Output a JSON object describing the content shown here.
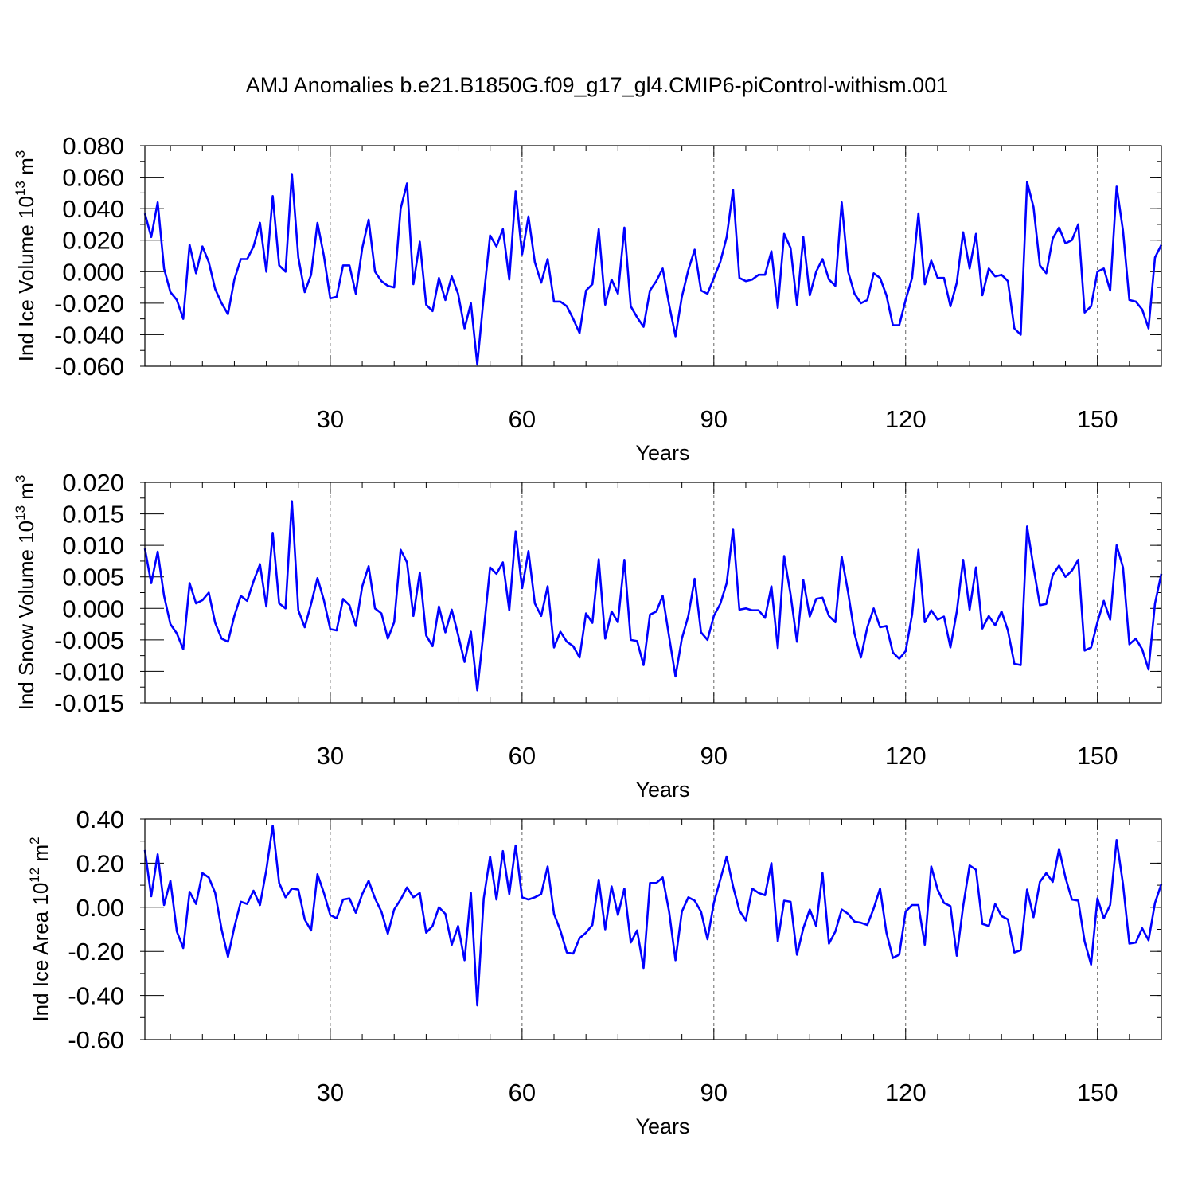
{
  "title": "AMJ Anomalies b.e21.B1850G.f09_g17_gl4.CMIP6-piControl-withism.001",
  "chart_data": [
    {
      "type": "line",
      "ylabel": "Ind Ice Volume 10",
      "ylabel_exp": "13",
      "ylabel_unit": " m",
      "ylabel_unit_exp": "3",
      "xlabel": "Years",
      "xlim": [
        1,
        160
      ],
      "ylim": [
        -0.06,
        0.08
      ],
      "yticks": [
        -0.06,
        -0.04,
        -0.02,
        0.0,
        0.02,
        0.04,
        0.06,
        0.08
      ],
      "ytick_labels": [
        "-0.060",
        "-0.040",
        "-0.020",
        "0.000",
        "0.020",
        "0.040",
        "0.060",
        "0.080"
      ],
      "xticks": [
        30,
        60,
        90,
        120,
        150
      ],
      "xtick_labels": [
        "30",
        "60",
        "90",
        "120",
        "150"
      ],
      "grid": "dashed vertical lines at major x ticks",
      "series": [
        {
          "color": "#0000ff",
          "x_start": 1,
          "values": [
            0.037,
            0.022,
            0.044,
            0.002,
            -0.013,
            -0.018,
            -0.03,
            0.017,
            -0.001,
            0.016,
            0.006,
            -0.011,
            -0.02,
            -0.027,
            -0.005,
            0.008,
            0.008,
            0.016,
            0.031,
            0.0,
            0.048,
            0.004,
            0.0,
            0.062,
            0.009,
            -0.013,
            -0.002,
            0.031,
            0.01,
            -0.017,
            -0.016,
            0.004,
            0.004,
            -0.014,
            0.015,
            0.033,
            0.0,
            -0.006,
            -0.009,
            -0.01,
            0.04,
            0.056,
            -0.008,
            0.019,
            -0.021,
            -0.025,
            -0.004,
            -0.018,
            -0.003,
            -0.014,
            -0.036,
            -0.02,
            -0.059,
            -0.016,
            0.023,
            0.016,
            0.027,
            -0.005,
            0.051,
            0.011,
            0.035,
            0.006,
            -0.007,
            0.008,
            -0.019,
            -0.019,
            -0.022,
            -0.03,
            -0.039,
            -0.012,
            -0.008,
            0.027,
            -0.021,
            -0.005,
            -0.014,
            0.028,
            -0.022,
            -0.029,
            -0.035,
            -0.012,
            -0.006,
            0.002,
            -0.021,
            -0.041,
            -0.016,
            0.001,
            0.014,
            -0.012,
            -0.014,
            -0.004,
            0.006,
            0.022,
            0.052,
            -0.004,
            -0.006,
            -0.005,
            -0.002,
            -0.002,
            0.013,
            -0.023,
            0.024,
            0.015,
            -0.021,
            0.022,
            -0.015,
            0.0,
            0.008,
            -0.005,
            -0.009,
            0.044,
            0.0,
            -0.014,
            -0.02,
            -0.018,
            -0.001,
            -0.004,
            -0.015,
            -0.034,
            -0.034,
            -0.018,
            -0.004,
            0.037,
            -0.008,
            0.007,
            -0.004,
            -0.004,
            -0.022,
            -0.007,
            0.025,
            0.002,
            0.024,
            -0.015,
            0.002,
            -0.003,
            -0.002,
            -0.006,
            -0.036,
            -0.04,
            0.057,
            0.041,
            0.004,
            -0.001,
            0.021,
            0.028,
            0.018,
            0.02,
            0.03,
            -0.026,
            -0.022,
            0.0,
            0.002,
            -0.012,
            0.054,
            0.026,
            -0.018,
            -0.019,
            -0.024,
            -0.036,
            0.009,
            0.017
          ]
        }
      ]
    },
    {
      "type": "line",
      "ylabel": "Ind Snow Volume 10",
      "ylabel_exp": "13",
      "ylabel_unit": " m",
      "ylabel_unit_exp": "3",
      "xlabel": "Years",
      "xlim": [
        1,
        160
      ],
      "ylim": [
        -0.015,
        0.02
      ],
      "yticks": [
        -0.015,
        -0.01,
        -0.005,
        0.0,
        0.005,
        0.01,
        0.015,
        0.02
      ],
      "ytick_labels": [
        "-0.015",
        "-0.010",
        "-0.005",
        "0.000",
        "0.005",
        "0.010",
        "0.015",
        "0.020"
      ],
      "xticks": [
        30,
        60,
        90,
        120,
        150
      ],
      "xtick_labels": [
        "30",
        "60",
        "90",
        "120",
        "150"
      ],
      "grid": "dashed vertical lines at major x ticks",
      "series": [
        {
          "color": "#0000ff",
          "x_start": 1,
          "values": [
            0.0095,
            0.004,
            0.009,
            0.002,
            -0.0025,
            -0.004,
            -0.0065,
            0.004,
            0.0008,
            0.0013,
            0.0025,
            -0.0023,
            -0.0048,
            -0.0053,
            -0.0012,
            0.002,
            0.0012,
            0.0043,
            0.007,
            0.0003,
            0.012,
            0.0008,
            0.0,
            0.017,
            -0.0003,
            -0.003,
            0.0007,
            0.0048,
            0.0013,
            -0.0033,
            -0.0035,
            0.0015,
            0.0005,
            -0.0028,
            0.0035,
            0.0067,
            0.0,
            -0.0008,
            -0.0048,
            -0.0022,
            0.0093,
            0.0073,
            -0.0012,
            0.0057,
            -0.0043,
            -0.006,
            0.0003,
            -0.0038,
            -0.0002,
            -0.0042,
            -0.0085,
            -0.0037,
            -0.013,
            -0.0035,
            0.0065,
            0.0055,
            0.0073,
            -0.0003,
            0.0122,
            0.0032,
            0.0091,
            0.0008,
            -0.0012,
            0.0035,
            -0.0062,
            -0.0037,
            -0.0053,
            -0.006,
            -0.0078,
            -0.0008,
            -0.0023,
            0.0078,
            -0.0048,
            -0.0005,
            -0.0022,
            0.0077,
            -0.005,
            -0.0052,
            -0.009,
            -0.001,
            -0.0005,
            0.002,
            -0.0045,
            -0.0108,
            -0.0048,
            -0.0012,
            0.0047,
            -0.0038,
            -0.005,
            -0.0012,
            0.0007,
            0.004,
            0.0126,
            -0.0002,
            0.0,
            -0.0003,
            -0.0003,
            -0.0015,
            0.0035,
            -0.0063,
            0.0083,
            0.0022,
            -0.0053,
            0.0045,
            -0.0013,
            0.0015,
            0.0017,
            -0.0012,
            -0.0022,
            0.0082,
            0.0025,
            -0.004,
            -0.0078,
            -0.003,
            0.0,
            -0.003,
            -0.0028,
            -0.007,
            -0.008,
            -0.0068,
            -0.001,
            0.0093,
            -0.0022,
            -0.0003,
            -0.0018,
            -0.0013,
            -0.0062,
            -0.0005,
            0.0077,
            -0.0002,
            0.0065,
            -0.0032,
            -0.0012,
            -0.0027,
            -0.0005,
            -0.0035,
            -0.0088,
            -0.009,
            0.013,
            0.0065,
            0.0005,
            0.0007,
            0.0053,
            0.0068,
            0.005,
            0.006,
            0.0077,
            -0.0067,
            -0.0062,
            -0.0022,
            0.0012,
            -0.0018,
            0.01,
            0.0065,
            -0.0057,
            -0.0048,
            -0.0065,
            -0.0097,
            0.0008,
            0.0055
          ]
        }
      ]
    },
    {
      "type": "line",
      "ylabel": "Ind Ice Area 10",
      "ylabel_exp": "12",
      "ylabel_unit": " m",
      "ylabel_unit_exp": "2",
      "xlabel": "Years",
      "xlim": [
        1,
        160
      ],
      "ylim": [
        -0.6,
        0.4
      ],
      "yticks": [
        -0.6,
        -0.4,
        -0.2,
        0.0,
        0.2,
        0.4
      ],
      "ytick_labels": [
        "-0.60",
        "-0.40",
        "-0.20",
        "0.00",
        "0.20",
        "0.40"
      ],
      "xticks": [
        30,
        60,
        90,
        120,
        150
      ],
      "xtick_labels": [
        "30",
        "60",
        "90",
        "120",
        "150"
      ],
      "grid": "dashed vertical lines at major x ticks",
      "series": [
        {
          "color": "#0000ff",
          "x_start": 1,
          "values": [
            0.26,
            0.05,
            0.24,
            0.01,
            0.12,
            -0.11,
            -0.185,
            0.07,
            0.015,
            0.155,
            0.135,
            0.065,
            -0.1,
            -0.225,
            -0.09,
            0.025,
            0.015,
            0.075,
            0.01,
            0.17,
            0.37,
            0.11,
            0.045,
            0.085,
            0.08,
            -0.055,
            -0.105,
            0.15,
            0.065,
            -0.035,
            -0.05,
            0.035,
            0.04,
            -0.025,
            0.06,
            0.12,
            0.04,
            -0.02,
            -0.12,
            -0.01,
            0.035,
            0.09,
            0.045,
            0.065,
            -0.115,
            -0.085,
            0.0,
            -0.03,
            -0.17,
            -0.085,
            -0.24,
            0.065,
            -0.445,
            0.04,
            0.23,
            0.035,
            0.255,
            0.06,
            0.28,
            0.045,
            0.035,
            0.045,
            0.06,
            0.185,
            -0.03,
            -0.105,
            -0.205,
            -0.21,
            -0.14,
            -0.115,
            -0.08,
            0.125,
            -0.1,
            0.095,
            -0.035,
            0.085,
            -0.16,
            -0.105,
            -0.275,
            0.11,
            0.11,
            0.135,
            -0.02,
            -0.24,
            -0.02,
            0.045,
            0.03,
            -0.02,
            -0.145,
            0.02,
            0.125,
            0.23,
            0.095,
            -0.015,
            -0.06,
            0.085,
            0.065,
            0.055,
            0.2,
            -0.155,
            0.03,
            0.025,
            -0.215,
            -0.095,
            -0.01,
            -0.085,
            0.155,
            -0.165,
            -0.11,
            -0.01,
            -0.03,
            -0.065,
            -0.07,
            -0.08,
            -0.005,
            0.085,
            -0.115,
            -0.23,
            -0.215,
            -0.02,
            0.01,
            0.01,
            -0.17,
            0.185,
            0.08,
            0.02,
            0.005,
            -0.22,
            0.005,
            0.19,
            0.17,
            -0.075,
            -0.085,
            0.015,
            -0.04,
            -0.055,
            -0.205,
            -0.195,
            0.08,
            -0.045,
            0.115,
            0.155,
            0.115,
            0.265,
            0.135,
            0.035,
            0.03,
            -0.155,
            -0.26,
            0.04,
            -0.05,
            0.01,
            0.305,
            0.105,
            -0.165,
            -0.16,
            -0.095,
            -0.15,
            0.02,
            0.105
          ]
        }
      ]
    }
  ]
}
